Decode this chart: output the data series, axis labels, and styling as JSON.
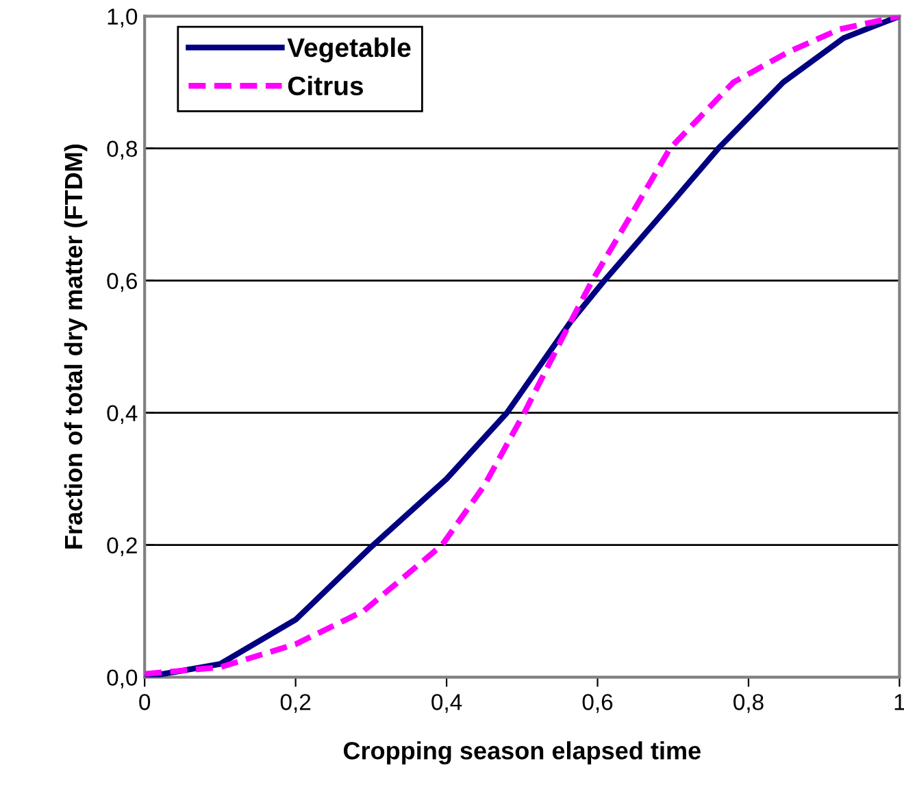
{
  "chart_data": {
    "type": "line",
    "xlabel": "Cropping season elapsed time",
    "ylabel": "Fraction of total dry matter (FTDM)",
    "xlim": [
      0,
      1
    ],
    "ylim": [
      0,
      1
    ],
    "xticks": [
      {
        "value": 0,
        "label": "0"
      },
      {
        "value": 0.2,
        "label": "0,2"
      },
      {
        "value": 0.4,
        "label": "0,4"
      },
      {
        "value": 0.6,
        "label": "0,6"
      },
      {
        "value": 0.8,
        "label": "0,8"
      },
      {
        "value": 1,
        "label": "1"
      }
    ],
    "yticks": [
      {
        "value": 0,
        "label": "0,0"
      },
      {
        "value": 0.2,
        "label": "0,2"
      },
      {
        "value": 0.4,
        "label": "0,4"
      },
      {
        "value": 0.6,
        "label": "0,6"
      },
      {
        "value": 0.8,
        "label": "0,8"
      },
      {
        "value": 1,
        "label": "1,0"
      }
    ],
    "grid": "y",
    "legend": "top left",
    "marker": "none",
    "series": [
      {
        "name": "Vegetable",
        "color": "#000080",
        "line_style": "solid",
        "x": [
          0,
          0.1,
          0.2,
          0.3,
          0.4,
          0.48,
          0.564,
          0.609,
          0.7,
          0.76,
          0.846,
          0.926,
          1
        ],
        "values": [
          0,
          0.02,
          0.087,
          0.197,
          0.3,
          0.4,
          0.537,
          0.6,
          0.72,
          0.8,
          0.9,
          0.967,
          1
        ]
      },
      {
        "name": "Citrus",
        "color": "#ff00ff",
        "line_style": "dashed",
        "x": [
          0,
          0.1,
          0.2,
          0.29,
          0.394,
          0.45,
          0.503,
          0.564,
          0.593,
          0.65,
          0.696,
          0.78,
          0.853,
          0.92,
          1
        ],
        "values": [
          0.005,
          0.015,
          0.05,
          0.1,
          0.2,
          0.29,
          0.4,
          0.537,
          0.6,
          0.71,
          0.8,
          0.9,
          0.946,
          0.98,
          1
        ]
      }
    ]
  }
}
